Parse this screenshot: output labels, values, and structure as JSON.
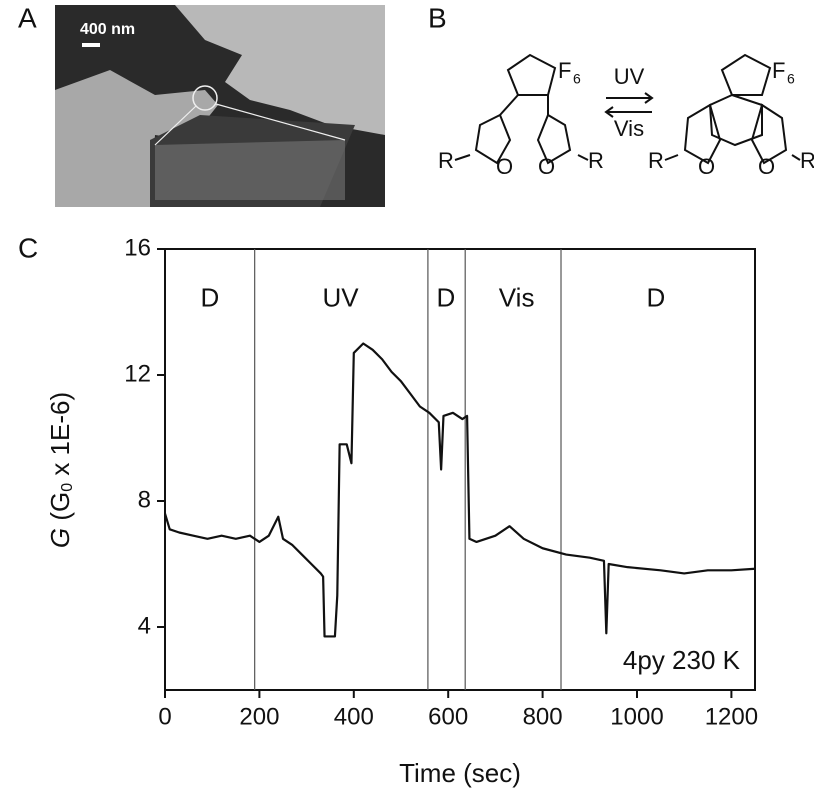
{
  "panels": {
    "a": "A",
    "b": "B",
    "c": "C"
  },
  "micrograph": {
    "scale_bar": "400 nm"
  },
  "scheme": {
    "fluorine": "F",
    "fluorine_count": "6",
    "forward": "UV",
    "backward": "Vis",
    "substituent": "R",
    "oxygen": "O"
  },
  "chart_data": {
    "type": "line",
    "x_label": "Time (sec)",
    "y_label": {
      "symbol": "G",
      "open": " (G",
      "sub": "0",
      "rest": " x 1E-6)"
    },
    "xlim": [
      0,
      1250
    ],
    "ylim": [
      2,
      16
    ],
    "xticks": [
      0,
      200,
      400,
      600,
      800,
      1000,
      1200
    ],
    "yticks": [
      4,
      8,
      12,
      16
    ],
    "annotation": "4py 230 K",
    "dividers": [
      190,
      557,
      636,
      839
    ],
    "regions": [
      {
        "label": "D",
        "x": 95
      },
      {
        "label": "UV",
        "x": 372
      },
      {
        "label": "D",
        "x": 595
      },
      {
        "label": "Vis",
        "x": 745
      },
      {
        "label": "D",
        "x": 1040
      }
    ],
    "region_y": 14.4,
    "series": [
      {
        "color": "#111111",
        "x": [
          0,
          10,
          30,
          60,
          90,
          120,
          150,
          180,
          200,
          220,
          240,
          250,
          270,
          290,
          310,
          330,
          335,
          338,
          360,
          365,
          370,
          385,
          395,
          400,
          420,
          440,
          460,
          480,
          500,
          520,
          540,
          560,
          580,
          585,
          590,
          610,
          630,
          640,
          645,
          660,
          700,
          730,
          760,
          800,
          850,
          900,
          930,
          935,
          940,
          980,
          1050,
          1100,
          1150,
          1200,
          1250
        ],
        "values": [
          7.6,
          7.1,
          7.0,
          6.9,
          6.8,
          6.9,
          6.8,
          6.9,
          6.7,
          6.9,
          7.5,
          6.8,
          6.6,
          6.3,
          6.0,
          5.7,
          5.6,
          3.7,
          3.7,
          5.0,
          9.8,
          9.8,
          9.2,
          12.7,
          13.0,
          12.8,
          12.5,
          12.1,
          11.8,
          11.4,
          11.0,
          10.8,
          10.5,
          9.0,
          10.7,
          10.8,
          10.6,
          10.7,
          6.8,
          6.7,
          6.9,
          7.2,
          6.8,
          6.5,
          6.3,
          6.2,
          6.1,
          3.8,
          6.0,
          5.9,
          5.8,
          5.7,
          5.8,
          5.8,
          5.85
        ]
      }
    ]
  }
}
